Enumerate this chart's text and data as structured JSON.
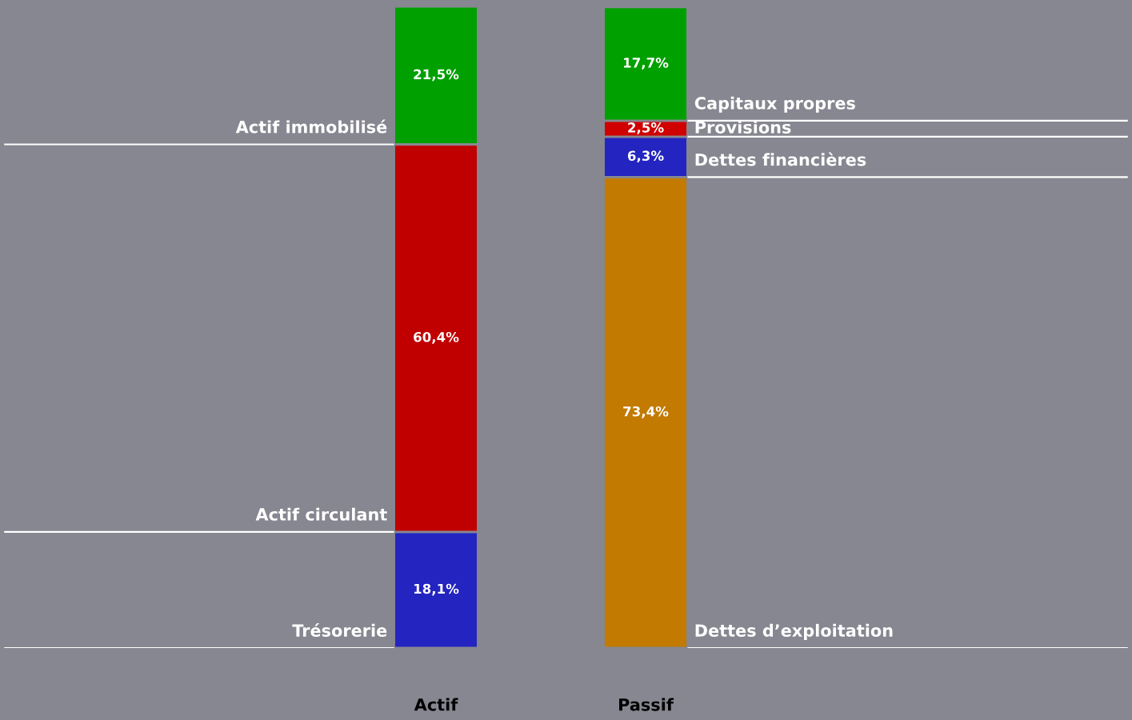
{
  "chart_data": [
    {
      "type": "bar",
      "stacked": true,
      "categories": [
        "Actif"
      ],
      "tick_labels": "x",
      "legend": false,
      "series": [
        {
          "name": "Trésorerie",
          "color": "#2424c0",
          "values": [
            18.1
          ],
          "value_labels": [
            "18,1%"
          ]
        },
        {
          "name": "Actif circulant",
          "color": "#c00000",
          "values": [
            60.4
          ],
          "value_labels": [
            "60,4%"
          ]
        },
        {
          "name": "Actif immobilisé",
          "color": "#00a000",
          "values": [
            21.5
          ],
          "value_labels": [
            "21,5%"
          ]
        }
      ]
    },
    {
      "type": "bar",
      "stacked": true,
      "categories": [
        "Passif"
      ],
      "tick_labels": "x",
      "legend": false,
      "series": [
        {
          "name": "Dettes d’exploitation",
          "color": "#c27a00",
          "values": [
            73.4
          ],
          "value_labels": [
            "73,4%"
          ]
        },
        {
          "name": "Dettes financières",
          "color": "#2424c0",
          "values": [
            6.3
          ],
          "value_labels": [
            "6,3%"
          ]
        },
        {
          "name": "Provisions",
          "color": "#d00000",
          "values": [
            2.5
          ],
          "value_labels": [
            "2,5%"
          ]
        },
        {
          "name": "Capitaux propres",
          "color": "#00a000",
          "values": [
            17.7
          ],
          "value_labels": [
            "17,7%"
          ]
        }
      ]
    }
  ]
}
